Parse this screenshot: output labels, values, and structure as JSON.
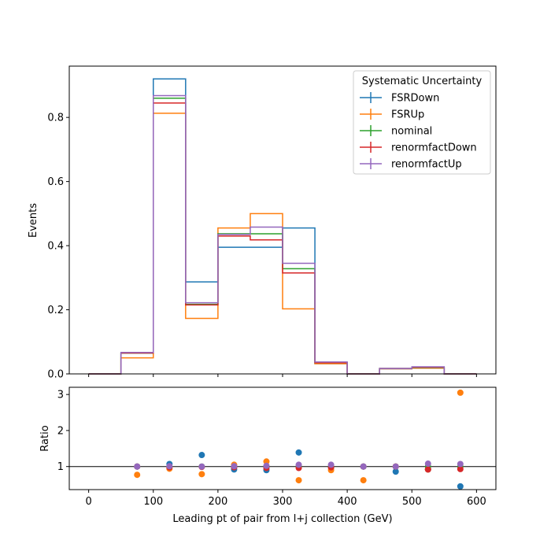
{
  "chart_data": {
    "type": "histogram-step",
    "xlabel": "Leading pt of pair from l+j collection (GeV)",
    "bin_edges": [
      0,
      50,
      100,
      150,
      200,
      250,
      300,
      350,
      400,
      450,
      500,
      550,
      600
    ],
    "top": {
      "ylabel": "Events",
      "ylim": [
        0,
        0.96
      ],
      "yticks": [
        0.0,
        0.2,
        0.4,
        0.6,
        0.8
      ],
      "ytick_labels": [
        "0.0",
        "0.2",
        "0.4",
        "0.6",
        "0.8"
      ]
    },
    "bottom": {
      "ylabel": "Ratio",
      "ylim": [
        0.36,
        3.2
      ],
      "yticks": [
        1,
        2,
        3
      ],
      "ytick_labels": [
        "1",
        "2",
        "3"
      ],
      "reference_line": 1,
      "bin_centers": [
        75,
        125,
        175,
        225,
        275,
        325,
        375,
        425,
        475,
        525,
        575
      ]
    },
    "xlim": [
      -30,
      630
    ],
    "xticks": [
      0,
      100,
      200,
      300,
      400,
      500,
      600
    ],
    "xtick_labels": [
      "0",
      "100",
      "200",
      "300",
      "400",
      "500",
      "600"
    ],
    "legend": {
      "title": "Systematic Uncertainty",
      "placement": "top-right"
    },
    "series": [
      {
        "name": "FSRDown",
        "color": "#1f77b4",
        "values": [
          0,
          0.065,
          0.92,
          0.287,
          0.395,
          0.395,
          0.455,
          0.032,
          0,
          0.016,
          0.018,
          0
        ],
        "ratio": [
          1.0,
          1.07,
          1.32,
          0.92,
          0.9,
          1.39,
          0.97,
          1.0,
          0.86,
          0.92,
          0.45
        ]
      },
      {
        "name": "FSRUp",
        "color": "#ff7f0e",
        "values": [
          0,
          0.05,
          0.813,
          0.173,
          0.455,
          0.5,
          0.203,
          0.032,
          0,
          0.016,
          0.018,
          0
        ],
        "ratio": [
          0.77,
          0.94,
          0.79,
          1.05,
          1.14,
          0.62,
          0.9,
          0.62,
          1.0,
          0.92,
          3.05
        ]
      },
      {
        "name": "nominal",
        "color": "#2ca02c",
        "values": [
          0,
          0.065,
          0.86,
          0.217,
          0.437,
          0.437,
          0.328,
          0.035,
          0,
          0.017,
          0.02,
          0
        ],
        "ratio": [
          1.0,
          1.0,
          1.0,
          1.0,
          1.0,
          1.0,
          1.0,
          1.0,
          1.0,
          1.0,
          1.0
        ]
      },
      {
        "name": "renormfactDown",
        "color": "#d62728",
        "values": [
          0,
          0.065,
          0.845,
          0.215,
          0.43,
          0.418,
          0.315,
          0.035,
          0,
          0.017,
          0.021,
          0
        ],
        "ratio": [
          1.0,
          0.98,
          0.99,
          0.98,
          0.96,
          0.96,
          0.98,
          1.0,
          1.0,
          0.92,
          0.93
        ]
      },
      {
        "name": "renormfactUp",
        "color": "#9467bd",
        "values": [
          0,
          0.067,
          0.868,
          0.222,
          0.435,
          0.458,
          0.345,
          0.037,
          0,
          0.017,
          0.022,
          0
        ],
        "ratio": [
          1.0,
          1.01,
          1.0,
          1.01,
          1.02,
          1.05,
          1.05,
          1.0,
          1.0,
          1.08,
          1.07
        ]
      }
    ]
  }
}
